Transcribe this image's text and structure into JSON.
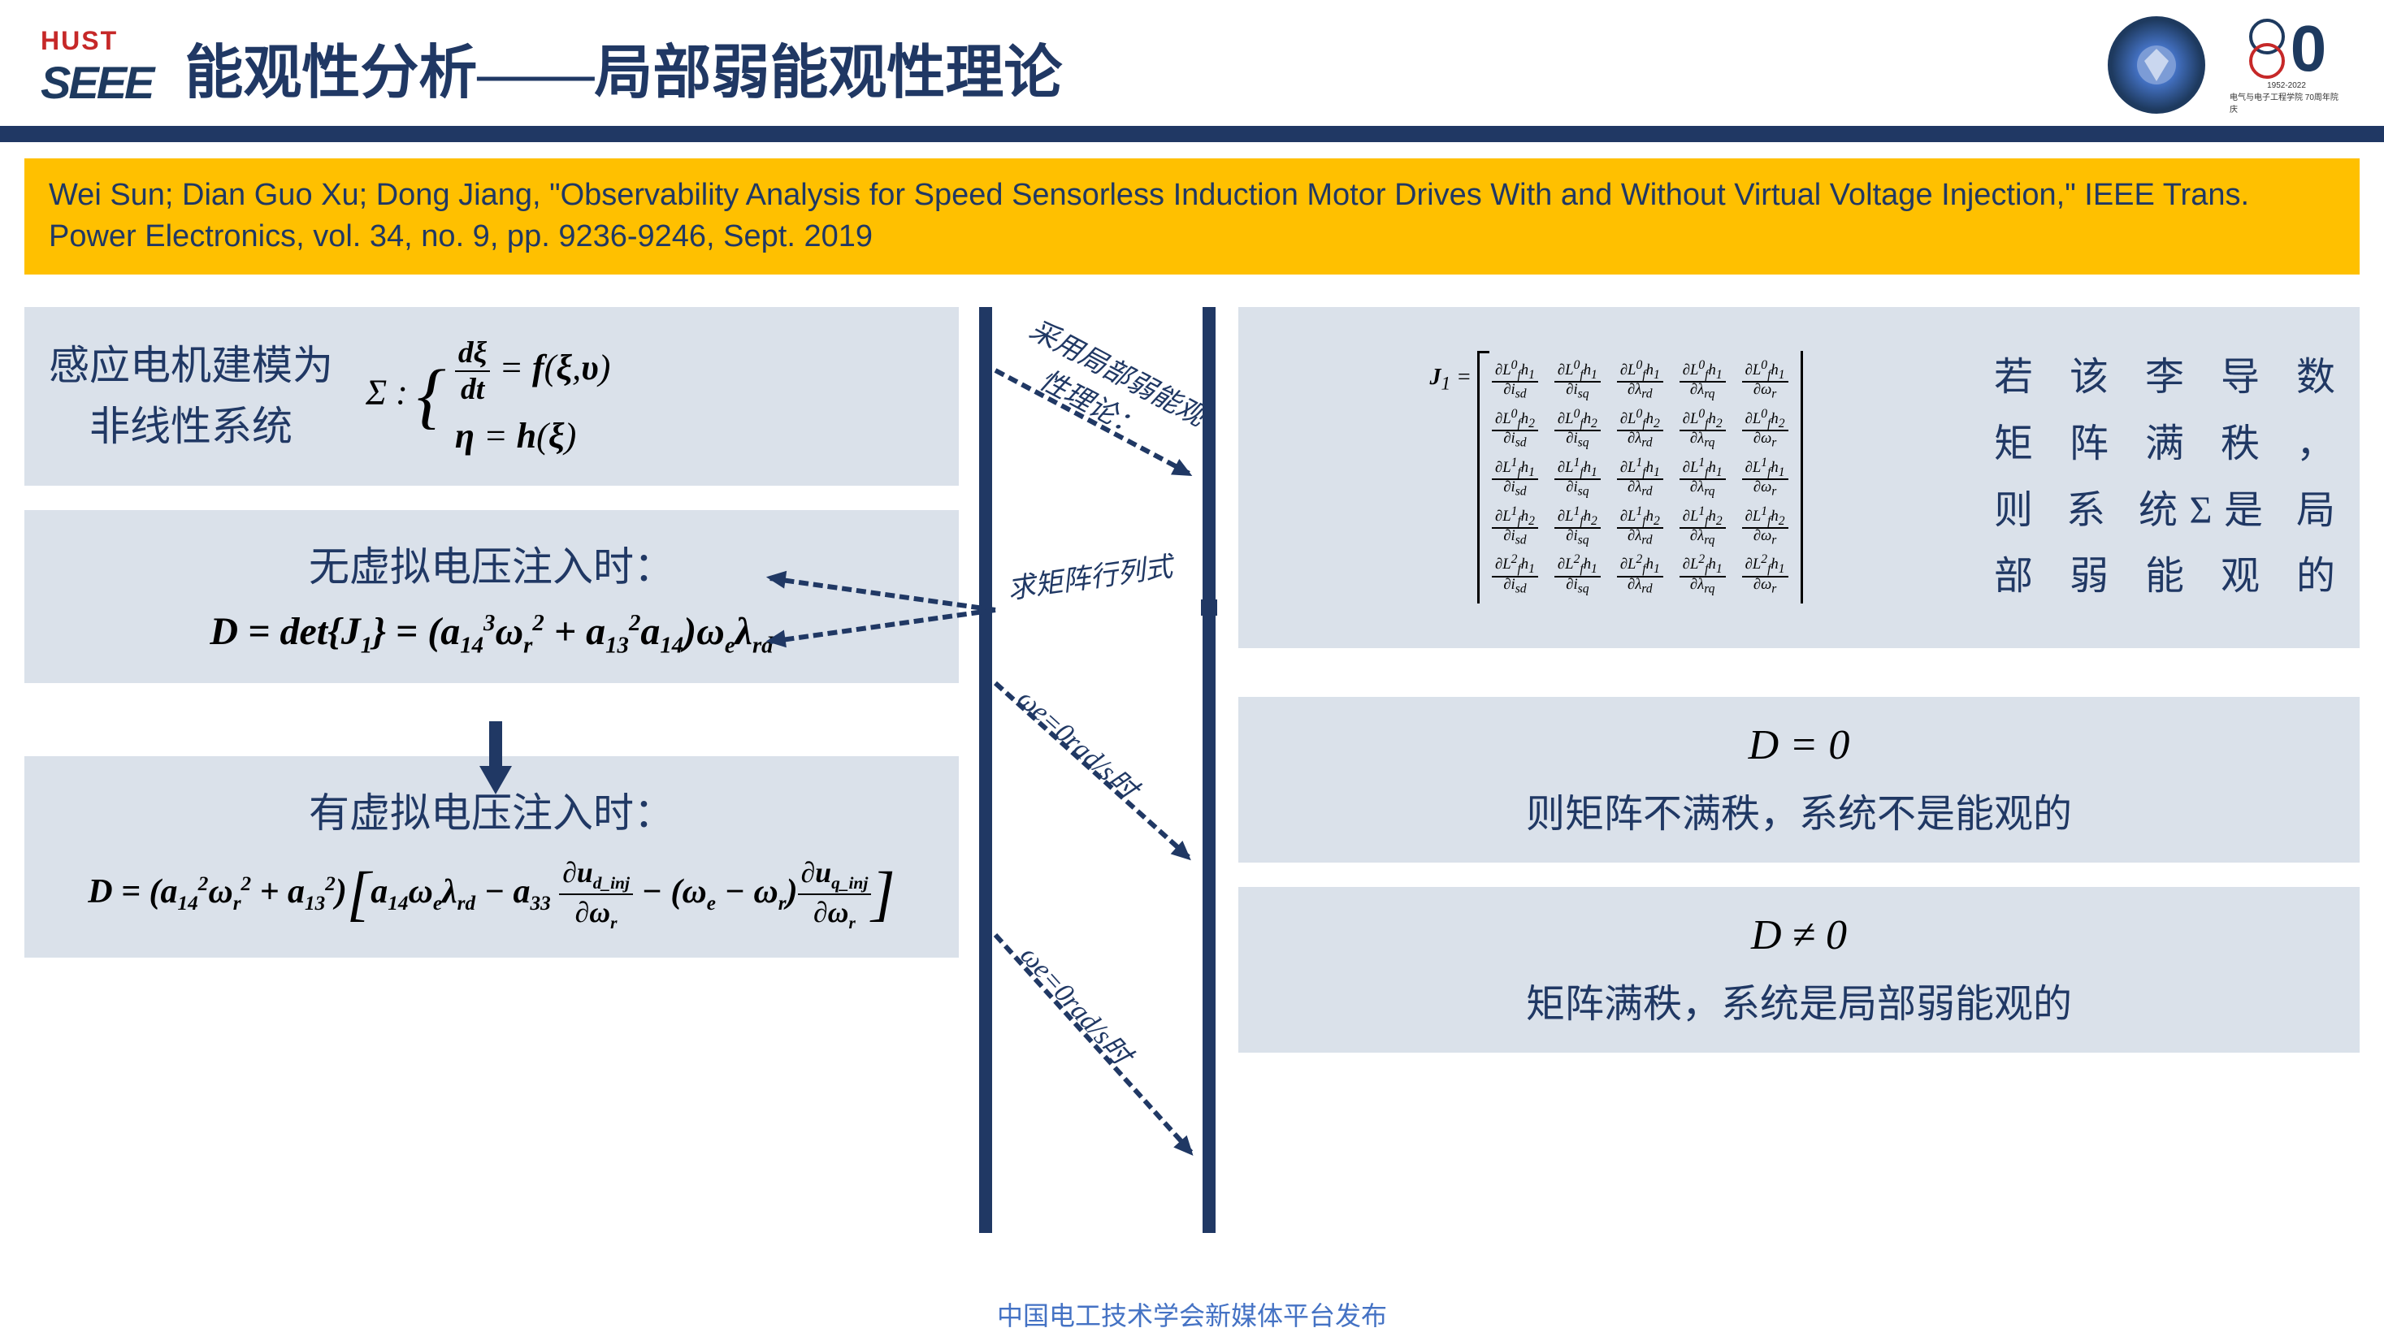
{
  "header": {
    "logo_top": "HUST",
    "logo_bottom": "SEEE",
    "title": "能观性分析——局部弱能观性理论",
    "badge70_num": "70",
    "badge70_sub1": "1952-2022",
    "badge70_sub2": "电气与电子工程学院 70周年院庆"
  },
  "citation": "Wei Sun; Dian Guo Xu; Dong Jiang, \"Observability Analysis for Speed Sensorless Induction Motor Drives With and Without Virtual Voltage Injection,\" IEEE Trans. Power Electronics, vol. 34, no. 9, pp. 9236-9246, Sept. 2019",
  "left": {
    "box1_text": "感应电机建模为\n非线性系统",
    "box1_eq_sigma": "Σ :",
    "box1_eq_line1": "dξ/dt = f(ξ,υ)",
    "box1_eq_line2": "η = h(ξ)",
    "box2_label": "无虚拟电压注入时：",
    "box2_eq": "D = det{J₁} = (a³₁₄ω²ᵣ + a²₁₃a₁₄)ωₑλᵣd",
    "box3_label": "有虚拟电压注入时：",
    "box3_eq": "D = (a²₁₄ω²ᵣ + a²₁₃)[a₁₄ωₑλᵣd − a₃₃ ∂u_d_inj/∂ωᵣ − (ωₑ−ωᵣ) ∂u_q_inj/∂ωᵣ]"
  },
  "right": {
    "box1_matrix_label": "J₁ =",
    "matrix_rows": [
      [
        "∂L⁰ƒh₁/∂iₛd",
        "∂L⁰ƒh₁/∂iₛq",
        "∂L⁰ƒh₁/∂λᵣd",
        "∂L⁰ƒh₁/∂λᵣq",
        "∂L⁰ƒh₁/∂ωᵣ"
      ],
      [
        "∂L⁰ƒh₂/∂iₛd",
        "∂L⁰ƒh₂/∂iₛq",
        "∂L⁰ƒh₂/∂λᵣd",
        "∂L⁰ƒh₂/∂λᵣq",
        "∂L⁰ƒh₂/∂ωᵣ"
      ],
      [
        "∂L¹ƒh₁/∂iₛd",
        "∂L¹ƒh₁/∂iₛq",
        "∂L¹ƒh₁/∂λᵣd",
        "∂L¹ƒh₁/∂λᵣq",
        "∂L¹ƒh₁/∂ωᵣ"
      ],
      [
        "∂L¹ƒh₂/∂iₛd",
        "∂L¹ƒh₂/∂iₛq",
        "∂L¹ƒh₂/∂λᵣd",
        "∂L¹ƒh₂/∂λᵣq",
        "∂L¹ƒh₂/∂ωᵣ"
      ],
      [
        "∂L²ƒh₁/∂iₛd",
        "∂L²ƒh₁/∂iₛq",
        "∂L²ƒh₁/∂λᵣd",
        "∂L²ƒh₁/∂λᵣq",
        "∂L²ƒh₁/∂ωᵣ"
      ]
    ],
    "box1_text": "若该李导数矩阵满秩，则系统Σ是局部弱能观的",
    "box2_eq": "D = 0",
    "box2_text": "则矩阵不满秩，系统不是能观的",
    "box3_eq": "D ≠ 0",
    "box3_text": "矩阵满秩，系统是局部弱能观的"
  },
  "arrows": {
    "a1": "采用局部弱能观性理论：",
    "a2": "求矩阵行列式",
    "a3": "ωe=0rad/s时",
    "a4": "ωe=0rad/s时"
  },
  "footer": "中国电工技术学会新媒体平台发布",
  "colors": {
    "navy": "#203864",
    "gold": "#ffc000",
    "box_bg": "#dae1ea",
    "red": "#c62828"
  }
}
